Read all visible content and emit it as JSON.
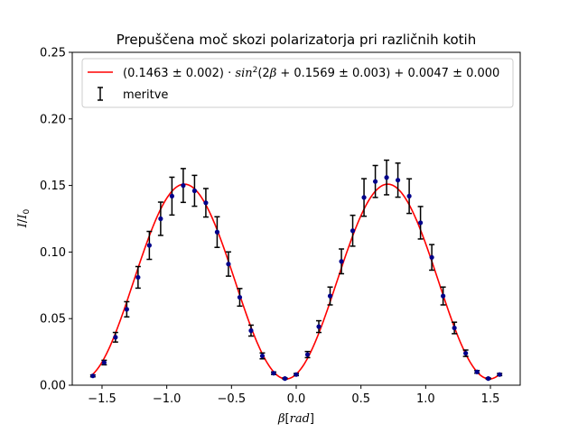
{
  "chart_data": {
    "type": "scatter",
    "title": "Prepuščena moč skozi polarizatorja pri različnih kotih",
    "xlabel": "β[rad]",
    "ylabel": "I/I₀",
    "xlim": [
      -1.73,
      1.73
    ],
    "ylim": [
      0.0,
      0.25
    ],
    "x_ticks": [
      -1.5,
      -1.0,
      -0.5,
      0.0,
      0.5,
      1.0,
      1.5
    ],
    "x_tick_labels": [
      "−1.5",
      "−1.0",
      "−0.5",
      "0.0",
      "0.5",
      "1.0",
      "1.5"
    ],
    "y_ticks": [
      0.0,
      0.05,
      0.1,
      0.15,
      0.2,
      0.25
    ],
    "y_tick_labels": [
      "0.00",
      "0.05",
      "0.10",
      "0.15",
      "0.20",
      "0.25"
    ],
    "grid": false,
    "legend_position": "top-right",
    "series": [
      {
        "name": "(0.1463 ± 0.002) · sin²(2β + 0.1569 ± 0.003) + 0.0047 ± 0.000",
        "kind": "fit-line",
        "color": "#ff0000",
        "model": {
          "a": 0.1463,
          "phase": 0.1569,
          "c": 0.0047,
          "frequency": 2
        }
      },
      {
        "name": "meritve",
        "kind": "points-with-errorbars",
        "point_color": "#00008b",
        "errorbar_color": "#000000",
        "x": [
          -1.5708,
          -1.4835,
          -1.3963,
          -1.309,
          -1.2217,
          -1.1345,
          -1.0472,
          -0.9599,
          -0.8727,
          -0.7854,
          -0.6981,
          -0.6109,
          -0.5236,
          -0.4363,
          -0.3491,
          -0.2618,
          -0.1745,
          -0.0873,
          0.0,
          0.0873,
          0.1745,
          0.2618,
          0.3491,
          0.4363,
          0.5236,
          0.6109,
          0.6981,
          0.7854,
          0.8727,
          0.9599,
          1.0472,
          1.1345,
          1.2217,
          1.309,
          1.3963,
          1.4835,
          1.5708
        ],
        "y": [
          0.007,
          0.017,
          0.036,
          0.057,
          0.081,
          0.105,
          0.125,
          0.142,
          0.15,
          0.146,
          0.137,
          0.115,
          0.091,
          0.066,
          0.041,
          0.022,
          0.009,
          0.005,
          0.008,
          0.023,
          0.044,
          0.067,
          0.093,
          0.116,
          0.141,
          0.153,
          0.156,
          0.154,
          0.142,
          0.122,
          0.096,
          0.067,
          0.043,
          0.024,
          0.01,
          0.005,
          0.008
        ],
        "yerr": [
          0.0007,
          0.0017,
          0.0036,
          0.0057,
          0.0081,
          0.0105,
          0.0125,
          0.0142,
          0.0127,
          0.0116,
          0.0107,
          0.0115,
          0.0091,
          0.0066,
          0.0041,
          0.0022,
          0.0009,
          0.0005,
          0.0008,
          0.0023,
          0.0044,
          0.0067,
          0.0093,
          0.0116,
          0.0141,
          0.012,
          0.013,
          0.0128,
          0.013,
          0.0122,
          0.0096,
          0.0067,
          0.0043,
          0.0024,
          0.001,
          0.0005,
          0.0008
        ]
      }
    ]
  }
}
